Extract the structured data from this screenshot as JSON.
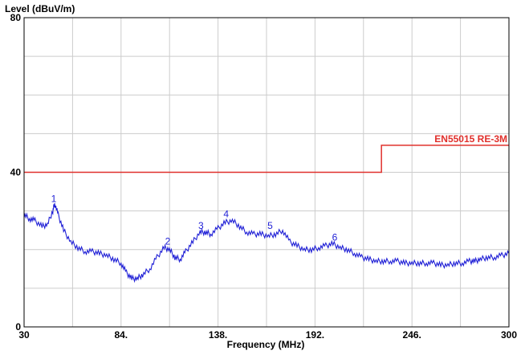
{
  "chart_data": {
    "type": "line",
    "title": "",
    "ylabel": "Level (dBuV/m)",
    "xlabel": "Frequency (MHz)",
    "xlim": [
      30,
      300
    ],
    "ylim": [
      0,
      80
    ],
    "x_ticks": [
      30,
      84,
      138,
      192,
      246,
      300
    ],
    "x_tick_labels": [
      "30",
      "84.",
      "138.",
      "192.",
      "246.",
      "300"
    ],
    "y_ticks": [
      0,
      40,
      80
    ],
    "y_tick_labels": [
      "0",
      "40",
      "80"
    ],
    "x_grid_lines": [
      30,
      57,
      84,
      111,
      138,
      165,
      192,
      219,
      246,
      273,
      300
    ],
    "y_grid_lines": [
      0,
      10,
      20,
      30,
      40,
      50,
      60,
      70,
      80
    ],
    "grid": true,
    "limit_line": {
      "name": "EN55015 RE-3M",
      "color": "#e0302c",
      "points": [
        [
          30,
          40
        ],
        [
          229,
          40
        ],
        [
          229,
          47
        ],
        [
          300,
          47
        ]
      ]
    },
    "series": [
      {
        "color": "#1f1fd6",
        "x": [
          30,
          33,
          36,
          40,
          43,
          46,
          47,
          49,
          52,
          56,
          60,
          64,
          68,
          72,
          76,
          80,
          84,
          87,
          90,
          93,
          96,
          100,
          104,
          108,
          111,
          114,
          117,
          120,
          124,
          128,
          131,
          134,
          138,
          142,
          146,
          150,
          154,
          158,
          162,
          166,
          170,
          174,
          178,
          182,
          186,
          190,
          194,
          198,
          202,
          206,
          210,
          214,
          218,
          222,
          226,
          230,
          234,
          238,
          242,
          246,
          250,
          254,
          258,
          262,
          266,
          270,
          274,
          278,
          281,
          284,
          288,
          292,
          296,
          300
        ],
        "y": [
          29,
          28,
          27.5,
          26,
          26.5,
          30,
          32,
          29,
          25,
          22,
          20.5,
          19.5,
          19.5,
          19,
          18.5,
          17.5,
          16.5,
          14,
          12.5,
          12.5,
          13.5,
          15,
          18,
          20.5,
          20,
          18,
          17.5,
          19.5,
          22,
          24.5,
          24.5,
          24,
          25.5,
          27,
          27.5,
          26,
          24.5,
          24,
          24,
          23.5,
          24,
          25,
          22,
          21,
          20,
          20,
          20.5,
          21,
          21.5,
          20.5,
          20,
          19,
          18,
          17.5,
          17,
          17,
          17,
          17,
          16.5,
          16.5,
          16.5,
          16.5,
          16.5,
          16,
          16,
          16.5,
          16.5,
          17,
          17,
          17.5,
          18,
          18,
          18.5,
          19
        ]
      }
    ],
    "peaks": [
      {
        "label": "1",
        "x": 46.5,
        "y": 31.5
      },
      {
        "label": "2",
        "x": 110,
        "y": 20.5
      },
      {
        "label": "3",
        "x": 128.5,
        "y": 24.5
      },
      {
        "label": "4",
        "x": 142.5,
        "y": 27.5
      },
      {
        "label": "5",
        "x": 167,
        "y": 24.5
      },
      {
        "label": "6",
        "x": 203,
        "y": 21.5
      }
    ]
  }
}
